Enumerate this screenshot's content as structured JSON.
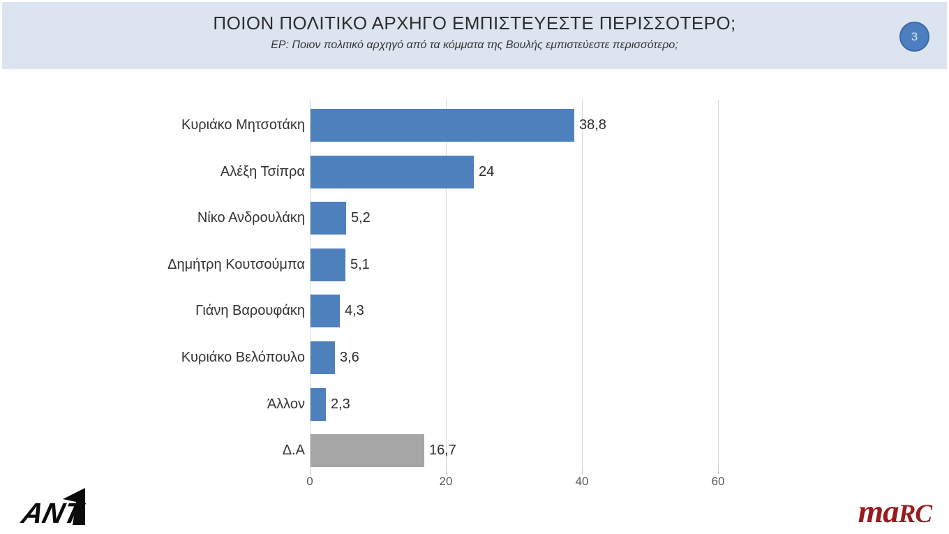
{
  "header": {
    "title": "ΠΟΙΟΝ ΠΟΛΙΤΙΚΟ ΑΡΧΗΓΟ ΕΜΠΙΣΤΕΥΕΣΤΕ ΠΕΡΙΣΣΟΤΕΡΟ;",
    "subtitle": "ΕΡ: Ποιον πολιτικό αρχηγό από τα κόμματα της Βουλής εμπιστεύεστε περισσότερο;"
  },
  "badge": {
    "number": "3"
  },
  "chart_data": {
    "type": "bar",
    "orientation": "horizontal",
    "categories": [
      "Κυριάκο Μητσοτάκη",
      "Αλέξη Τσίπρα",
      "Νίκο Ανδρουλάκη",
      "Δημήτρη Κουτσούμπα",
      "Γιάνη Βαρουφάκη",
      "Κυριάκο Βελόπουλο",
      "Άλλον",
      "Δ.Α"
    ],
    "values": [
      38.8,
      24,
      5.2,
      5.1,
      4.3,
      3.6,
      2.3,
      16.7
    ],
    "value_labels": [
      "38,8",
      "24",
      "5,2",
      "5,1",
      "4,3",
      "3,6",
      "2,3",
      "16,7"
    ],
    "x_ticks": [
      0,
      20,
      40,
      60
    ],
    "x_tick_labels": [
      "0",
      "20",
      "40",
      "60"
    ],
    "xlim": [
      0,
      60
    ],
    "grid": true,
    "legend": false,
    "title": "",
    "xlabel": "",
    "ylabel": "",
    "bar_color": "#4e80bd",
    "last_bar_color": "#a6a6a6",
    "gridline_color": "#d9d9d9",
    "tick_label_color": "#595959",
    "label_color": "#333333"
  },
  "footer": {
    "ant1_text": "ANT",
    "marc_left": "ma",
    "marc_right": "RC"
  },
  "colors": {
    "header_band": "#dce4f0",
    "badge_fill": "#4d7ebf",
    "badge_border": "#3c69a7",
    "marc_red": "#9a1b1f",
    "ant1_black": "#0b0b0b"
  }
}
